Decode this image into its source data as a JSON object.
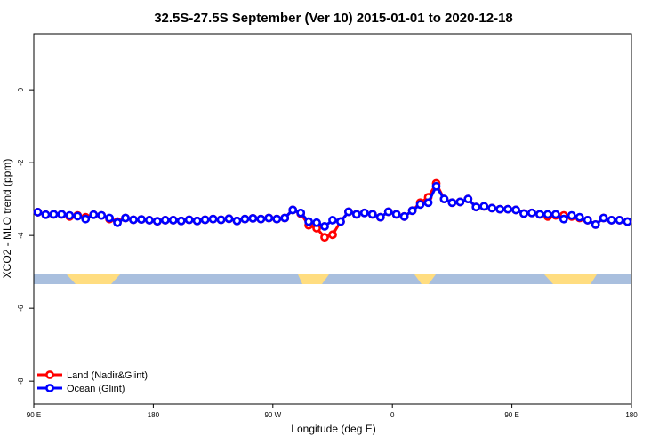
{
  "chart_data": {
    "type": "line",
    "title": "32.5S-27.5S September (Ver 10)   2015-01-01 to 2020-12-18",
    "x_label": "Longitude (deg E)",
    "y_label": "XCO2 - MLO trend (ppm)",
    "xlim": [
      90,
      540
    ],
    "ylim": [
      -8.63,
      1.54
    ],
    "xticks": [
      {
        "value": 90,
        "label": "90 E"
      },
      180,
      {
        "value": 270,
        "label": "90 W"
      },
      {
        "value": 360,
        "label": "0"
      },
      {
        "value": 450,
        "label": "90 E"
      },
      {
        "value": 540,
        "label": "180"
      }
    ],
    "yticks": [
      0,
      -2,
      -4,
      -6,
      -8
    ],
    "legend": "bottomleft",
    "x": [
      93,
      99,
      105,
      111,
      117,
      123,
      129,
      135,
      141,
      147,
      153,
      159,
      165,
      171,
      177,
      183,
      189,
      195,
      201,
      207,
      213,
      219,
      225,
      231,
      237,
      243,
      249,
      255,
      261,
      267,
      273,
      279,
      285,
      291,
      297,
      303,
      309,
      315,
      321,
      327,
      333,
      339,
      345,
      351,
      357,
      363,
      369,
      375,
      381,
      387,
      393,
      399,
      405,
      411,
      417,
      423,
      429,
      435,
      441,
      447,
      453,
      459,
      465,
      471,
      477,
      483,
      489,
      495,
      501,
      507,
      513,
      519,
      525,
      531,
      537
    ],
    "series": [
      {
        "name": "Land (Nadir&Glint)",
        "color": "#ff0000",
        "values": [
          -3.36,
          -3.43,
          -3.42,
          -3.42,
          -3.48,
          -3.45,
          -3.5,
          -3.43,
          -3.45,
          -3.55,
          -3.62,
          -3.52,
          -3.57,
          -3.56,
          -3.58,
          -3.61,
          -3.58,
          -3.58,
          -3.6,
          -3.57,
          -3.6,
          -3.57,
          -3.55,
          -3.57,
          -3.54,
          -3.6,
          -3.55,
          -3.53,
          -3.55,
          -3.52,
          -3.55,
          -3.52,
          -3.3,
          -3.4,
          -3.72,
          -3.8,
          -4.05,
          -3.98,
          -3.62,
          -3.35,
          -3.42,
          -3.38,
          -3.42,
          -3.5,
          -3.35,
          -3.42,
          -3.48,
          -3.32,
          -3.1,
          -2.95,
          -2.57,
          -3.0,
          -3.1,
          -3.08,
          -3.0,
          -3.22,
          -3.2,
          -3.25,
          -3.28,
          -3.28,
          -3.3,
          -3.4,
          -3.38,
          -3.42,
          -3.48,
          -3.45,
          -3.45,
          -3.48,
          -3.52,
          -3.58,
          -3.7,
          -3.52,
          -3.58,
          -3.58,
          -3.62
        ]
      },
      {
        "name": "Ocean (Glint)",
        "color": "#0000ff",
        "values": [
          -3.36,
          -3.43,
          -3.42,
          -3.42,
          -3.45,
          -3.47,
          -3.55,
          -3.43,
          -3.45,
          -3.52,
          -3.65,
          -3.52,
          -3.57,
          -3.56,
          -3.58,
          -3.61,
          -3.58,
          -3.58,
          -3.6,
          -3.57,
          -3.6,
          -3.57,
          -3.55,
          -3.57,
          -3.54,
          -3.6,
          -3.55,
          -3.53,
          -3.55,
          -3.52,
          -3.55,
          -3.52,
          -3.3,
          -3.38,
          -3.62,
          -3.65,
          -3.75,
          -3.58,
          -3.62,
          -3.35,
          -3.42,
          -3.38,
          -3.42,
          -3.5,
          -3.35,
          -3.42,
          -3.48,
          -3.32,
          -3.15,
          -3.1,
          -2.65,
          -3.0,
          -3.1,
          -3.08,
          -3.0,
          -3.22,
          -3.2,
          -3.25,
          -3.28,
          -3.28,
          -3.3,
          -3.4,
          -3.38,
          -3.42,
          -3.42,
          -3.42,
          -3.55,
          -3.45,
          -3.5,
          -3.58,
          -3.7,
          -3.52,
          -3.58,
          -3.58,
          -3.62
        ]
      }
    ]
  }
}
